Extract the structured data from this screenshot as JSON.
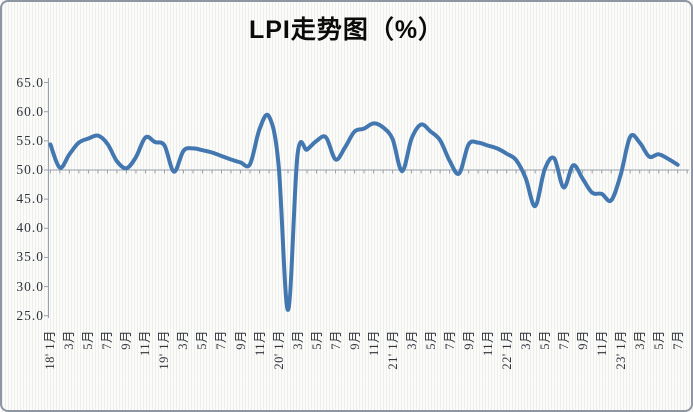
{
  "title": "LPI走势图（%）",
  "chart_data": {
    "type": "line",
    "title": "LPI走势图（%）",
    "series_name": "LPI",
    "frequency": "monthly",
    "x_start_label": "18' 1月",
    "x_end_label": "7月",
    "x_tick_labels": [
      "18' 1月",
      "3月",
      "5月",
      "7月",
      "9月",
      "11月",
      "19' 1月",
      "3月",
      "5月",
      "7月",
      "9月",
      "11月",
      "20' 1月",
      "3月",
      "5月",
      "7月",
      "9月",
      "11月",
      "21' 1月",
      "3月",
      "5月",
      "7月",
      "9月",
      "11月",
      "22' 1月",
      "3月",
      "5月",
      "7月",
      "9月",
      "11月",
      "23' 1月",
      "3月",
      "5月",
      "7月"
    ],
    "x_tick_every_n_months": 2,
    "y_tick_labels": [
      "65.0",
      "60.0",
      "55.0",
      "50.0",
      "45.0",
      "40.0",
      "35.0",
      "30.0",
      "25.0"
    ],
    "ylim": [
      25.0,
      65.0
    ],
    "y_step": 5.0,
    "axis_crosses_at": 50.0,
    "grid": false,
    "legend": "none",
    "line_color": "#4377b0",
    "axis_color": "#98a0ab",
    "values": [
      54.4,
      50.4,
      52.7,
      54.7,
      55.4,
      55.9,
      54.5,
      51.5,
      50.3,
      52.2,
      55.6,
      54.8,
      54.2,
      49.7,
      53.3,
      53.7,
      53.4,
      53.0,
      52.4,
      51.8,
      51.3,
      51.0,
      57.0,
      59.2,
      51.0,
      26.0,
      52.6,
      53.5,
      55.0,
      55.6,
      51.8,
      53.9,
      56.6,
      57.1,
      58.0,
      57.3,
      55.3,
      49.8,
      55.4,
      57.8,
      56.6,
      55.1,
      51.6,
      49.4,
      54.4,
      54.7,
      54.2,
      53.7,
      52.8,
      51.7,
      48.6,
      43.8,
      50.1,
      52.0,
      47.0,
      50.8,
      48.5,
      46.1,
      45.9,
      44.8,
      49.2,
      55.7,
      54.7,
      52.3,
      52.7,
      51.9,
      50.9
    ]
  }
}
